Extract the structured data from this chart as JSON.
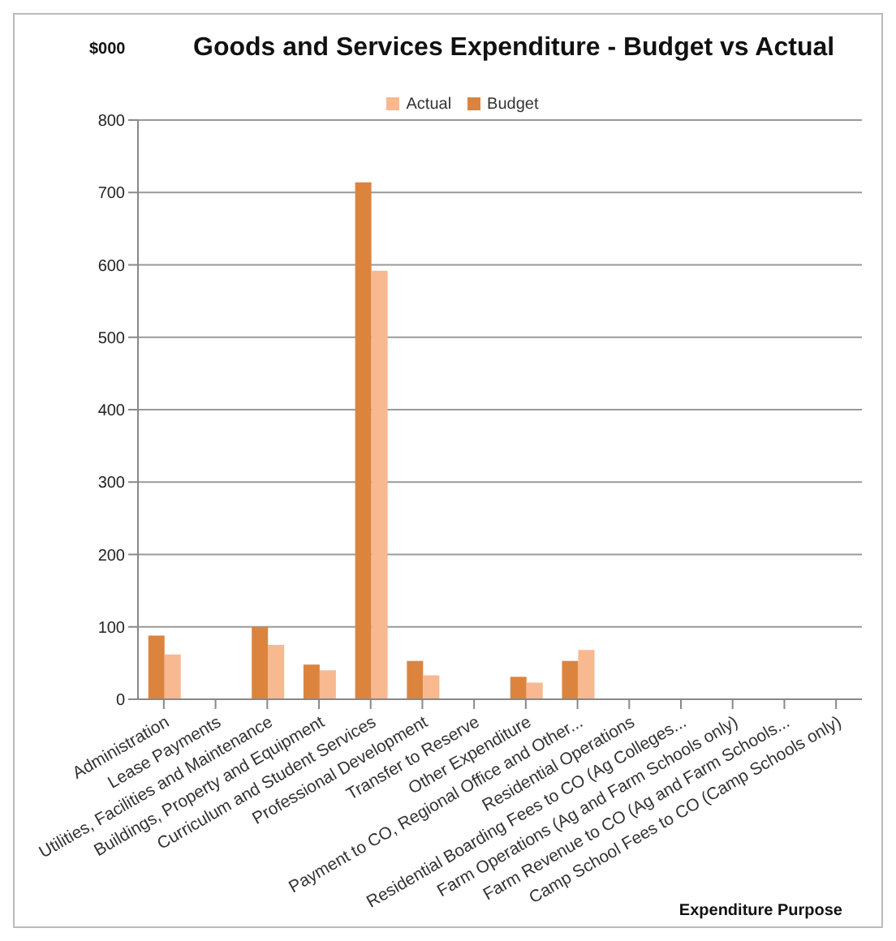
{
  "chart_data": {
    "type": "bar",
    "title": "Goods and Services Expenditure - Budget vs Actual",
    "ylabel": "$000",
    "xlabel": "Expenditure Purpose",
    "categories": [
      "Administration",
      "Lease Payments",
      "Utilities, Facilities and Maintenance",
      "Buildings, Property and Equipment",
      "Curriculum and Student Services",
      "Professional Development",
      "Transfer to Reserve",
      "Other Expenditure",
      "Payment to CO, Regional Office and Other...",
      "Residential Operations",
      "Residential Boarding Fees to CO (Ag Colleges...",
      "Farm Operations (Ag and Farm Schools only)",
      "Farm Revenue to CO (Ag and Farm Schools...",
      "Camp School Fees to CO (Camp Schools only)"
    ],
    "series": [
      {
        "name": "Budget",
        "color": "#dc843e",
        "values": [
          88,
          0,
          100,
          48,
          714,
          53,
          0,
          31,
          53,
          0,
          0,
          0,
          0,
          0
        ]
      },
      {
        "name": "Actual",
        "color": "#f8b890",
        "values": [
          62,
          0,
          75,
          40,
          592,
          33,
          0,
          23,
          68,
          0,
          0,
          0,
          0,
          0
        ]
      }
    ],
    "ylim": [
      0,
      800
    ],
    "yticks": [
      0,
      100,
      200,
      300,
      400,
      500,
      600,
      700,
      800
    ],
    "grid": "y",
    "legend": "top"
  }
}
